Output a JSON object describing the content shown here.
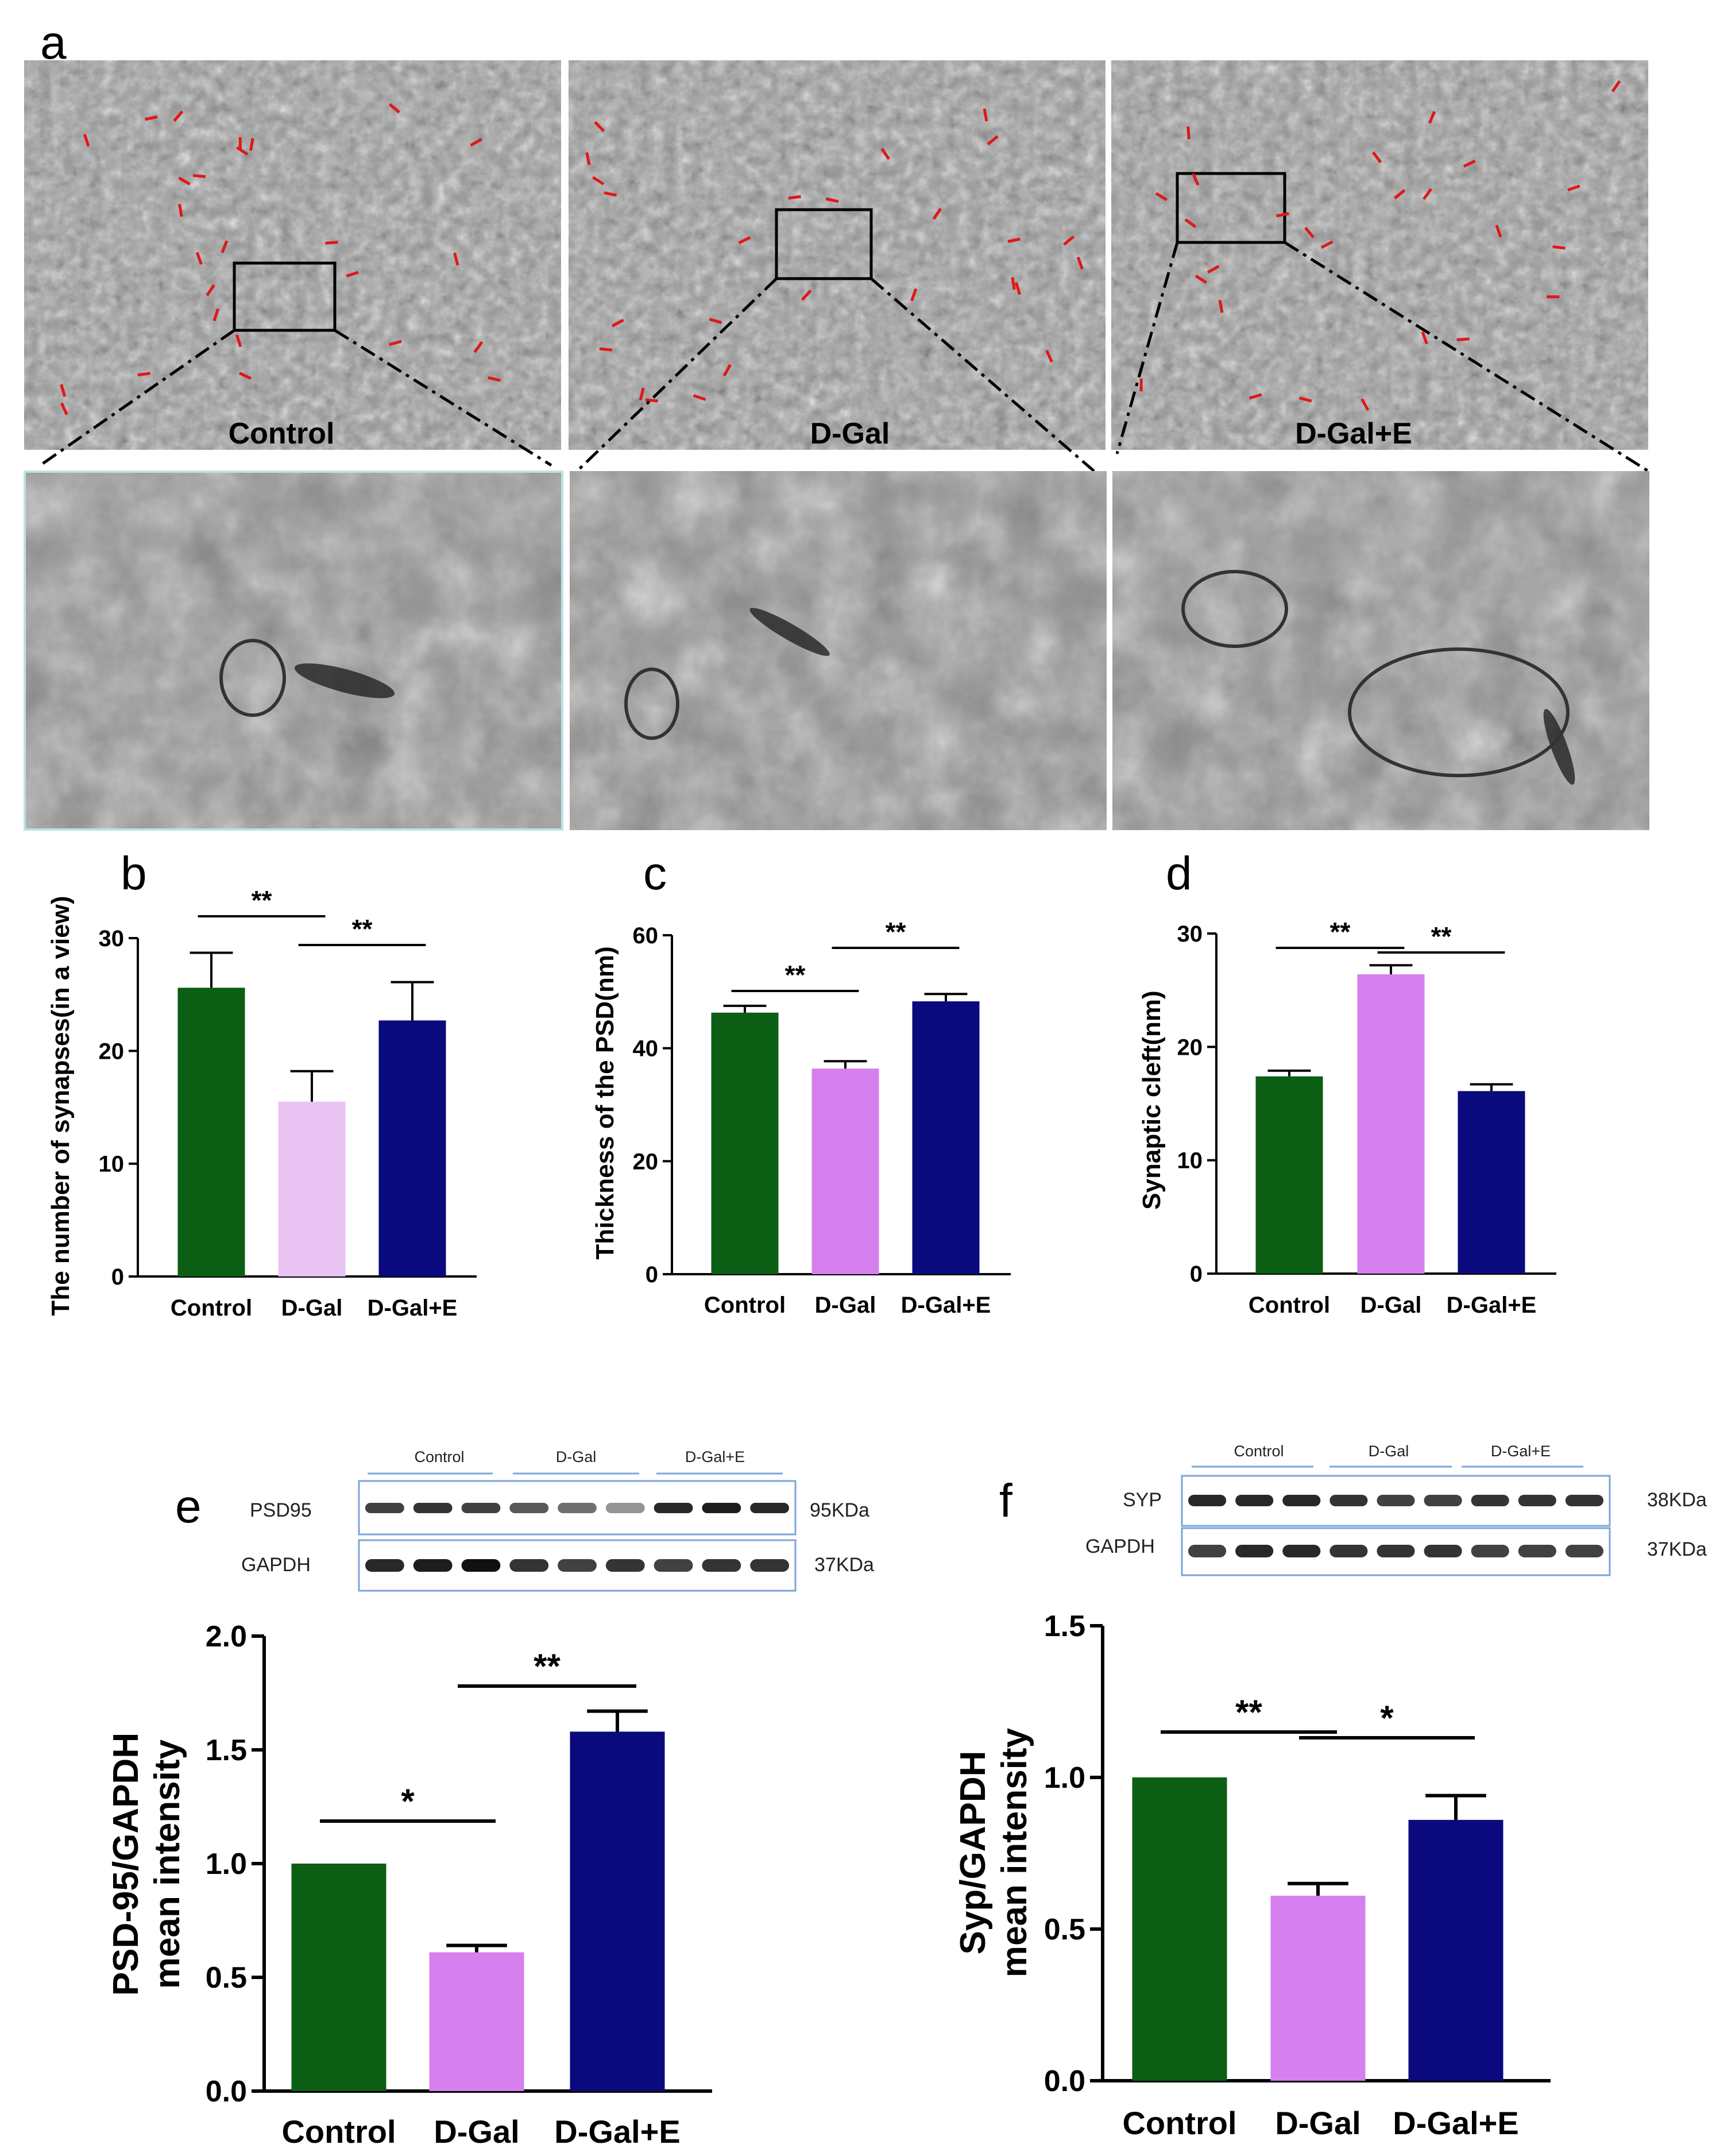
{
  "panel_letters": {
    "a": "a",
    "b": "b",
    "c": "c",
    "d": "d",
    "e": "e",
    "f": "f"
  },
  "em_labels": [
    "Control",
    "D-Gal",
    "D-Gal+E"
  ],
  "colors": {
    "control": "#0b5e14",
    "dgal_light": "#e9c3f2",
    "dgal": "#d580ee",
    "dgal_e": "#0a0a7e"
  },
  "blots": {
    "e": {
      "groups": [
        "Control",
        "D-Gal",
        "D-Gal+E"
      ],
      "rows": [
        {
          "name": "PSD95",
          "size": "95KDa"
        },
        {
          "name": "GAPDH",
          "size": "37KDa"
        }
      ]
    },
    "f": {
      "groups": [
        "Control",
        "D-Gal",
        "D-Gal+E"
      ],
      "rows": [
        {
          "name": "SYP",
          "size": "38KDa"
        },
        {
          "name": "GAPDH",
          "size": "37KDa"
        }
      ]
    }
  },
  "chart_data": [
    {
      "id": "b",
      "type": "bar",
      "categories": [
        "Control",
        "D-Gal",
        "D-Gal+E"
      ],
      "values": [
        25.6,
        15.5,
        22.7
      ],
      "errors": [
        3.1,
        2.7,
        3.4
      ],
      "ylabel": "The number of synapses(in a view)",
      "ylim": [
        0,
        30
      ],
      "yticks": [
        "0",
        "10",
        "20",
        "30"
      ],
      "significance": [
        {
          "from": 0,
          "to": 1,
          "label": "**"
        },
        {
          "from": 1,
          "to": 2,
          "label": "**"
        }
      ]
    },
    {
      "id": "c",
      "type": "bar",
      "categories": [
        "Control",
        "D-Gal",
        "D-Gal+E"
      ],
      "values": [
        46.3,
        36.4,
        48.3
      ],
      "errors": [
        1.2,
        1.3,
        1.3
      ],
      "ylabel": "Thickness of the PSD(nm)",
      "ylim": [
        0,
        60
      ],
      "yticks": [
        "0",
        "20",
        "40",
        "60"
      ],
      "significance": [
        {
          "from": 0,
          "to": 1,
          "label": "**"
        },
        {
          "from": 1,
          "to": 2,
          "label": "**"
        }
      ]
    },
    {
      "id": "d",
      "type": "bar",
      "categories": [
        "Control",
        "D-Gal",
        "D-Gal+E"
      ],
      "values": [
        17.4,
        26.4,
        16.1
      ],
      "errors": [
        0.5,
        0.8,
        0.6
      ],
      "ylabel": "Synaptic cleft(nm)",
      "ylim": [
        0,
        30
      ],
      "yticks": [
        "0",
        "10",
        "20",
        "30"
      ],
      "significance": [
        {
          "from": 0,
          "to": 1,
          "label": "**"
        },
        {
          "from": 1,
          "to": 2,
          "label": "**"
        }
      ]
    },
    {
      "id": "e",
      "type": "bar",
      "categories": [
        "Control",
        "D-Gal",
        "D-Gal+E"
      ],
      "values": [
        1.0,
        0.61,
        1.58
      ],
      "errors": [
        0,
        0.03,
        0.09
      ],
      "ylabel": [
        "PSD-95/GAPDH",
        "mean intensity"
      ],
      "ylim": [
        0,
        2.0
      ],
      "yticks": [
        "0.0",
        "0.5",
        "1.0",
        "1.5",
        "2.0"
      ],
      "significance": [
        {
          "from": 0,
          "to": 1,
          "label": "*"
        },
        {
          "from": 1,
          "to": 2,
          "label": "**"
        }
      ]
    },
    {
      "id": "f",
      "type": "bar",
      "categories": [
        "Control",
        "D-Gal",
        "D-Gal+E"
      ],
      "values": [
        1.0,
        0.61,
        0.86
      ],
      "errors": [
        0,
        0.04,
        0.08
      ],
      "ylabel": [
        "Syp/GAPDH",
        "mean intensity"
      ],
      "ylim": [
        0,
        1.5
      ],
      "yticks": [
        "0.0",
        "0.5",
        "1.0",
        "1.5"
      ],
      "significance": [
        {
          "from": 0,
          "to": 1,
          "label": "**"
        },
        {
          "from": 1,
          "to": 2,
          "label": "*"
        }
      ]
    }
  ]
}
